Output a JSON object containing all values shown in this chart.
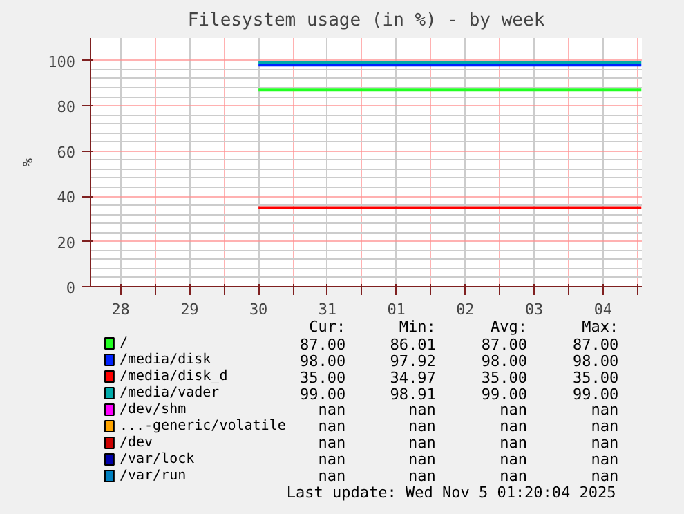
{
  "chart_data": {
    "type": "line",
    "title": "Filesystem usage (in %) - by week",
    "ylabel": "%",
    "xlim": [
      "2025-10-28T01:30",
      "2025-11-05T01:30"
    ],
    "ylim": [
      0,
      110
    ],
    "xticks": [
      {
        "value": "2025-10-28T12:00",
        "label": "28"
      },
      {
        "value": "2025-10-29",
        "label": null
      },
      {
        "value": "2025-10-29T12:00",
        "label": "29"
      },
      {
        "value": "2025-10-30",
        "label": null
      },
      {
        "value": "2025-10-30T12:00",
        "label": "30"
      },
      {
        "value": "2025-10-31",
        "label": null
      },
      {
        "value": "2025-10-31T12:00",
        "label": "31"
      },
      {
        "value": "2025-11-01",
        "label": null
      },
      {
        "value": "2025-11-01T12:00",
        "label": "01"
      },
      {
        "value": "2025-11-02",
        "label": null
      },
      {
        "value": "2025-11-02T12:00",
        "label": "02"
      },
      {
        "value": "2025-11-03",
        "label": null
      },
      {
        "value": "2025-11-03T12:00",
        "label": "03"
      },
      {
        "value": "2025-11-04",
        "label": null
      },
      {
        "value": "2025-11-04T12:00",
        "label": "04"
      },
      {
        "value": "2025-11-05",
        "label": null
      }
    ],
    "yticks": [
      0,
      20,
      40,
      60,
      80,
      100
    ],
    "grid": true,
    "legend": "bottom",
    "series": [
      {
        "name": "/",
        "color": "#22ff22",
        "x": [
          "2025-10-30T12:00",
          "2025-11-05T01:20"
        ],
        "values": [
          87,
          87
        ]
      },
      {
        "name": "/media/disk",
        "color": "#0022ff",
        "x": [
          "2025-10-30T12:00",
          "2025-11-05T01:20"
        ],
        "values": [
          98,
          98
        ]
      },
      {
        "name": "/media/disk_d",
        "color": "#ff0000",
        "x": [
          "2025-10-30T12:00",
          "2025-11-05T01:20"
        ],
        "values": [
          35,
          35
        ]
      },
      {
        "name": "/media/vader",
        "color": "#00aaaa",
        "x": [
          "2025-10-30T12:00",
          "2025-11-05T01:20"
        ],
        "values": [
          99,
          99
        ]
      },
      {
        "name": "/dev/shm",
        "color": "#ff00ff",
        "values": [
          null
        ]
      },
      {
        "name": "...-generic/volatile",
        "color": "#ffa500",
        "values": [
          null
        ]
      },
      {
        "name": "/dev",
        "color": "#cc0000",
        "values": [
          null
        ]
      },
      {
        "name": "/var/lock",
        "color": "#0000aa",
        "values": [
          null
        ]
      },
      {
        "name": "/var/run",
        "color": "#0080c0",
        "values": [
          null
        ]
      }
    ],
    "annotations": [
      "Cur:",
      "Min:",
      "Avg:",
      "Max:",
      "87.00",
      "86.01",
      "87.00",
      "87.00",
      "98.00",
      "97.92",
      "98.00",
      "98.00",
      "35.00",
      "34.97",
      "35.00",
      "35.00",
      "99.00",
      "98.91",
      "99.00",
      "99.00",
      "nan",
      "nan",
      "nan",
      "nan",
      "nan",
      "nan",
      "nan",
      "nan",
      "nan",
      "nan",
      "nan",
      "nan",
      "nan",
      "nan",
      "nan",
      "nan",
      "nan",
      "nan",
      "nan",
      "nan",
      "Last update: Wed Nov  5 01:20:04 2025"
    ]
  }
}
